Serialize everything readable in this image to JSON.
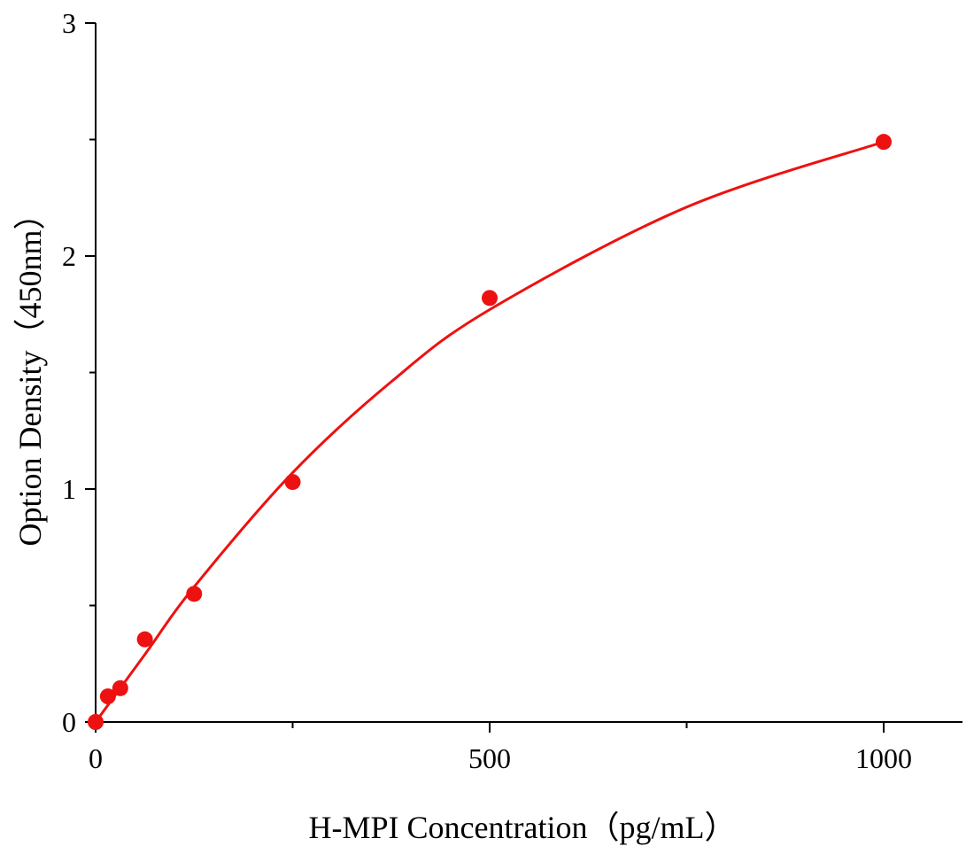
{
  "chart_data": {
    "type": "scatter",
    "title": "",
    "xlabel": "H-MPI Concentration（pg/mL）",
    "ylabel": "Option Density（450nm）",
    "xlim": [
      0,
      1100
    ],
    "ylim": [
      0,
      3
    ],
    "x_major_ticks": [
      0,
      500,
      1000
    ],
    "x_tick_labels": [
      "0",
      "500",
      "1000"
    ],
    "x_minor_ticks": [
      250,
      750
    ],
    "y_major_ticks": [
      0,
      1,
      2,
      3
    ],
    "y_tick_labels": [
      "0",
      "1",
      "2",
      "3"
    ],
    "y_minor_ticks": [
      0.5,
      1.5,
      2.5
    ],
    "grid": false,
    "series": [
      {
        "x": [
          0,
          15.6,
          31.25,
          62.5,
          125,
          250,
          500,
          1000
        ],
        "y": [
          0.0,
          0.11,
          0.145,
          0.355,
          0.55,
          1.03,
          1.82,
          2.49
        ],
        "color": "#ee1111"
      }
    ],
    "fit_curve": {
      "x": [
        0,
        62.5,
        125,
        250,
        375,
        500,
        750,
        1000
      ],
      "y": [
        0.0,
        0.29,
        0.58,
        1.07,
        1.46,
        1.77,
        2.21,
        2.49
      ],
      "color": "#ee1111"
    }
  }
}
